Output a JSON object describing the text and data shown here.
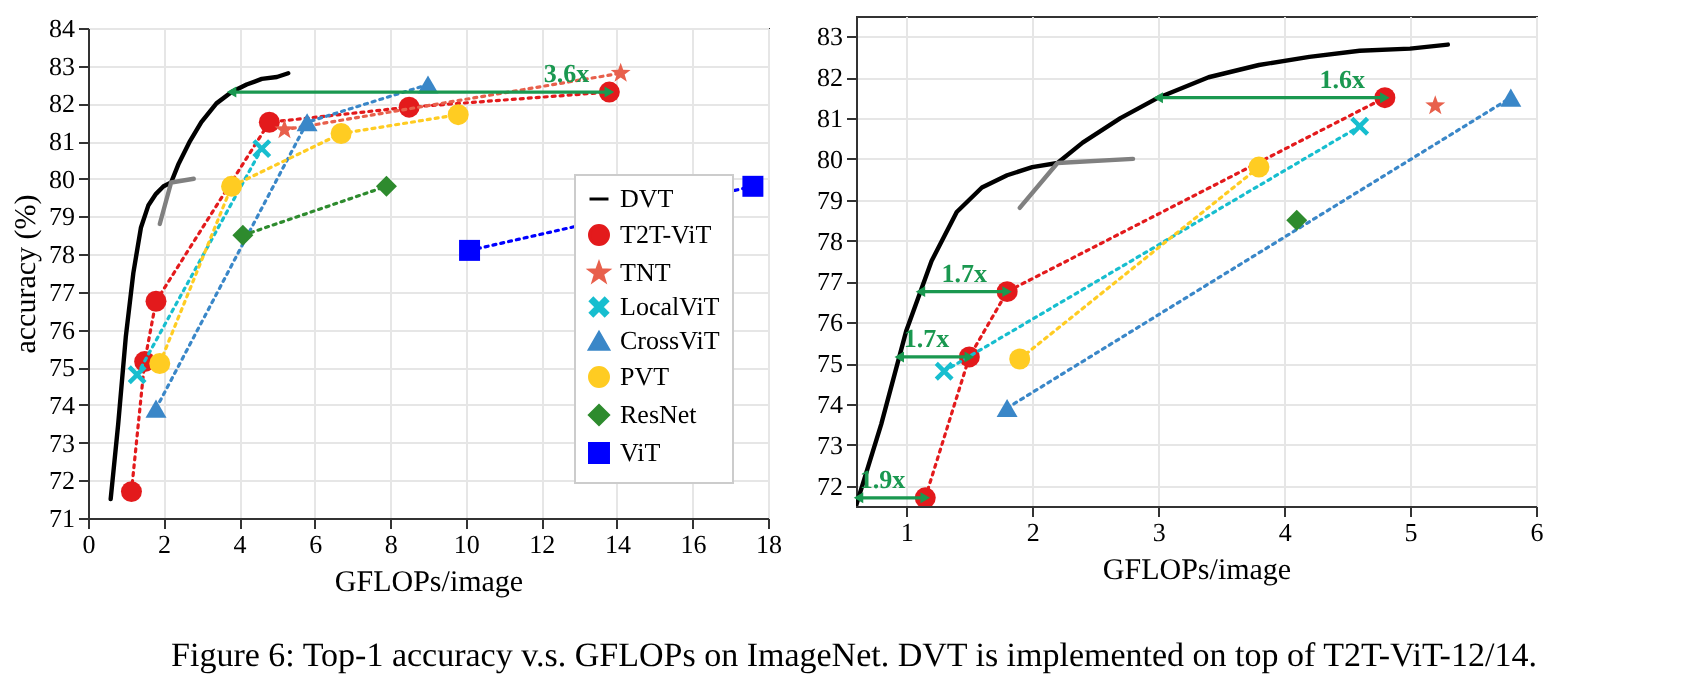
{
  "chart_data": [
    {
      "type": "line",
      "xlabel": "GFLOPs/image",
      "ylabel": "accuracy (%)",
      "xlim": [
        0,
        18
      ],
      "xticks": [
        0,
        2,
        4,
        6,
        8,
        10,
        12,
        14,
        16,
        18
      ],
      "ylim": [
        71,
        84
      ],
      "yticks": [
        71,
        72,
        73,
        74,
        75,
        76,
        77,
        78,
        79,
        80,
        81,
        82,
        83,
        84
      ],
      "grid": true,
      "legend": "bottom right",
      "series": [
        {
          "name": "DVT",
          "color": "#000000",
          "marker": "none",
          "line_style": "solid",
          "x": [
            0.6,
            0.8,
            1.0,
            1.2,
            1.4,
            1.6,
            1.8,
            2.0,
            2.2,
            2.4,
            2.7,
            3.0,
            3.4,
            3.8,
            4.2,
            4.6,
            5.0,
            5.3
          ],
          "values": [
            71.5,
            73.5,
            75.8,
            77.5,
            78.7,
            79.3,
            79.6,
            79.8,
            79.9,
            80.4,
            81.0,
            81.5,
            82.0,
            82.3,
            82.5,
            82.65,
            82.7,
            82.8
          ]
        },
        {
          "color": "#808080",
          "marker": "none",
          "line_style": "solid",
          "x": [
            1.9,
            2.2,
            2.8
          ],
          "values": [
            78.8,
            79.9,
            80.0
          ]
        },
        {
          "name": "T2T-ViT",
          "color": "#e31a1c",
          "marker": "circle",
          "line_style": "dotted",
          "x": [
            1.15,
            1.5,
            1.8,
            4.8,
            8.5,
            13.8
          ],
          "values": [
            71.7,
            75.15,
            76.75,
            81.5,
            81.9,
            82.3
          ]
        },
        {
          "name": "TNT",
          "color": "#e8604c",
          "marker": "star",
          "line_style": "dotted",
          "x": [
            5.2,
            14.1
          ],
          "values": [
            81.3,
            82.8
          ]
        },
        {
          "name": "LocalViT",
          "color": "#17becf",
          "marker": "cross",
          "line_style": "dotted",
          "x": [
            1.3,
            4.6
          ],
          "values": [
            74.8,
            80.8
          ]
        },
        {
          "name": "CrossViT",
          "color": "#3a87c8",
          "marker": "triangle",
          "line_style": "dotted",
          "x": [
            1.8,
            5.8,
            9.0
          ],
          "values": [
            73.9,
            81.5,
            82.5
          ]
        },
        {
          "name": "PVT",
          "color": "#ffcc22",
          "marker": "circle",
          "line_style": "dotted",
          "x": [
            1.9,
            3.8,
            6.7,
            9.8
          ],
          "values": [
            75.1,
            79.8,
            81.2,
            81.7
          ]
        },
        {
          "name": "ResNet",
          "color": "#2e8b2e",
          "marker": "diamond",
          "line_style": "dotted",
          "x": [
            4.1,
            7.9
          ],
          "values": [
            78.5,
            79.8
          ]
        },
        {
          "name": "ViT",
          "color": "#0000ff",
          "marker": "square",
          "line_style": "dotted",
          "x": [
            10.1,
            17.6
          ],
          "values": [
            78.1,
            79.8
          ]
        }
      ],
      "annotations": [
        {
          "text": "3.6x",
          "x": 13.8,
          "y": 82.3
        },
        "Figure 6: Top-1 accuracy v.s. GFLOPs on ImageNet. DVT is implemented on top of T2T-ViT-12/14."
      ]
    },
    {
      "type": "line",
      "xlabel": "GFLOPs/image",
      "xlim": [
        0.6,
        6
      ],
      "xticks": [
        1,
        2,
        3,
        4,
        5,
        6
      ],
      "ylim": [
        71.5,
        83.5
      ],
      "yticks": [
        72,
        73,
        74,
        75,
        76,
        77,
        78,
        79,
        80,
        81,
        82,
        83
      ],
      "grid": true,
      "series": [
        {
          "color": "#000000",
          "marker": "none",
          "line_style": "solid",
          "x": [
            0.6,
            0.8,
            1.0,
            1.2,
            1.4,
            1.6,
            1.8,
            2.0,
            2.2,
            2.4,
            2.7,
            3.0,
            3.4,
            3.8,
            4.2,
            4.6,
            5.0,
            5.3
          ],
          "values": [
            71.5,
            73.5,
            75.8,
            77.5,
            78.7,
            79.3,
            79.6,
            79.8,
            79.9,
            80.4,
            81.0,
            81.5,
            82.0,
            82.3,
            82.5,
            82.65,
            82.7,
            82.8
          ]
        },
        {
          "color": "#808080",
          "marker": "none",
          "line_style": "solid",
          "x": [
            1.9,
            2.2,
            2.8
          ],
          "values": [
            78.8,
            79.9,
            80.0
          ]
        },
        {
          "color": "#e31a1c",
          "marker": "circle",
          "line_style": "dotted",
          "x": [
            1.15,
            1.5,
            1.8,
            4.8
          ],
          "values": [
            71.7,
            75.15,
            76.75,
            81.5
          ]
        },
        {
          "color": "#e8604c",
          "marker": "star",
          "line_style": "dotted",
          "x": [
            5.2
          ],
          "values": [
            81.3
          ]
        },
        {
          "color": "#17becf",
          "marker": "cross",
          "line_style": "dotted",
          "x": [
            1.3,
            4.6
          ],
          "values": [
            74.8,
            80.8
          ]
        },
        {
          "color": "#3a87c8",
          "marker": "triangle",
          "line_style": "dotted",
          "x": [
            1.8,
            5.8
          ],
          "values": [
            73.9,
            81.5
          ]
        },
        {
          "color": "#ffcc22",
          "marker": "circle",
          "line_style": "dotted",
          "x": [
            1.9,
            3.8
          ],
          "values": [
            75.1,
            79.8
          ]
        },
        {
          "color": "#2e8b2e",
          "marker": "diamond",
          "line_style": "dotted",
          "x": [
            4.1
          ],
          "values": [
            78.5
          ]
        }
      ],
      "annotations": [
        {
          "text": "1.6x",
          "x": 4.8,
          "y": 81.5
        },
        {
          "text": "1.7x",
          "x": 1.8,
          "y": 76.75
        },
        {
          "text": "1.7x",
          "x": 1.5,
          "y": 75.15
        },
        {
          "text": "1.9x",
          "x": 1.15,
          "y": 71.7
        }
      ]
    }
  ]
}
